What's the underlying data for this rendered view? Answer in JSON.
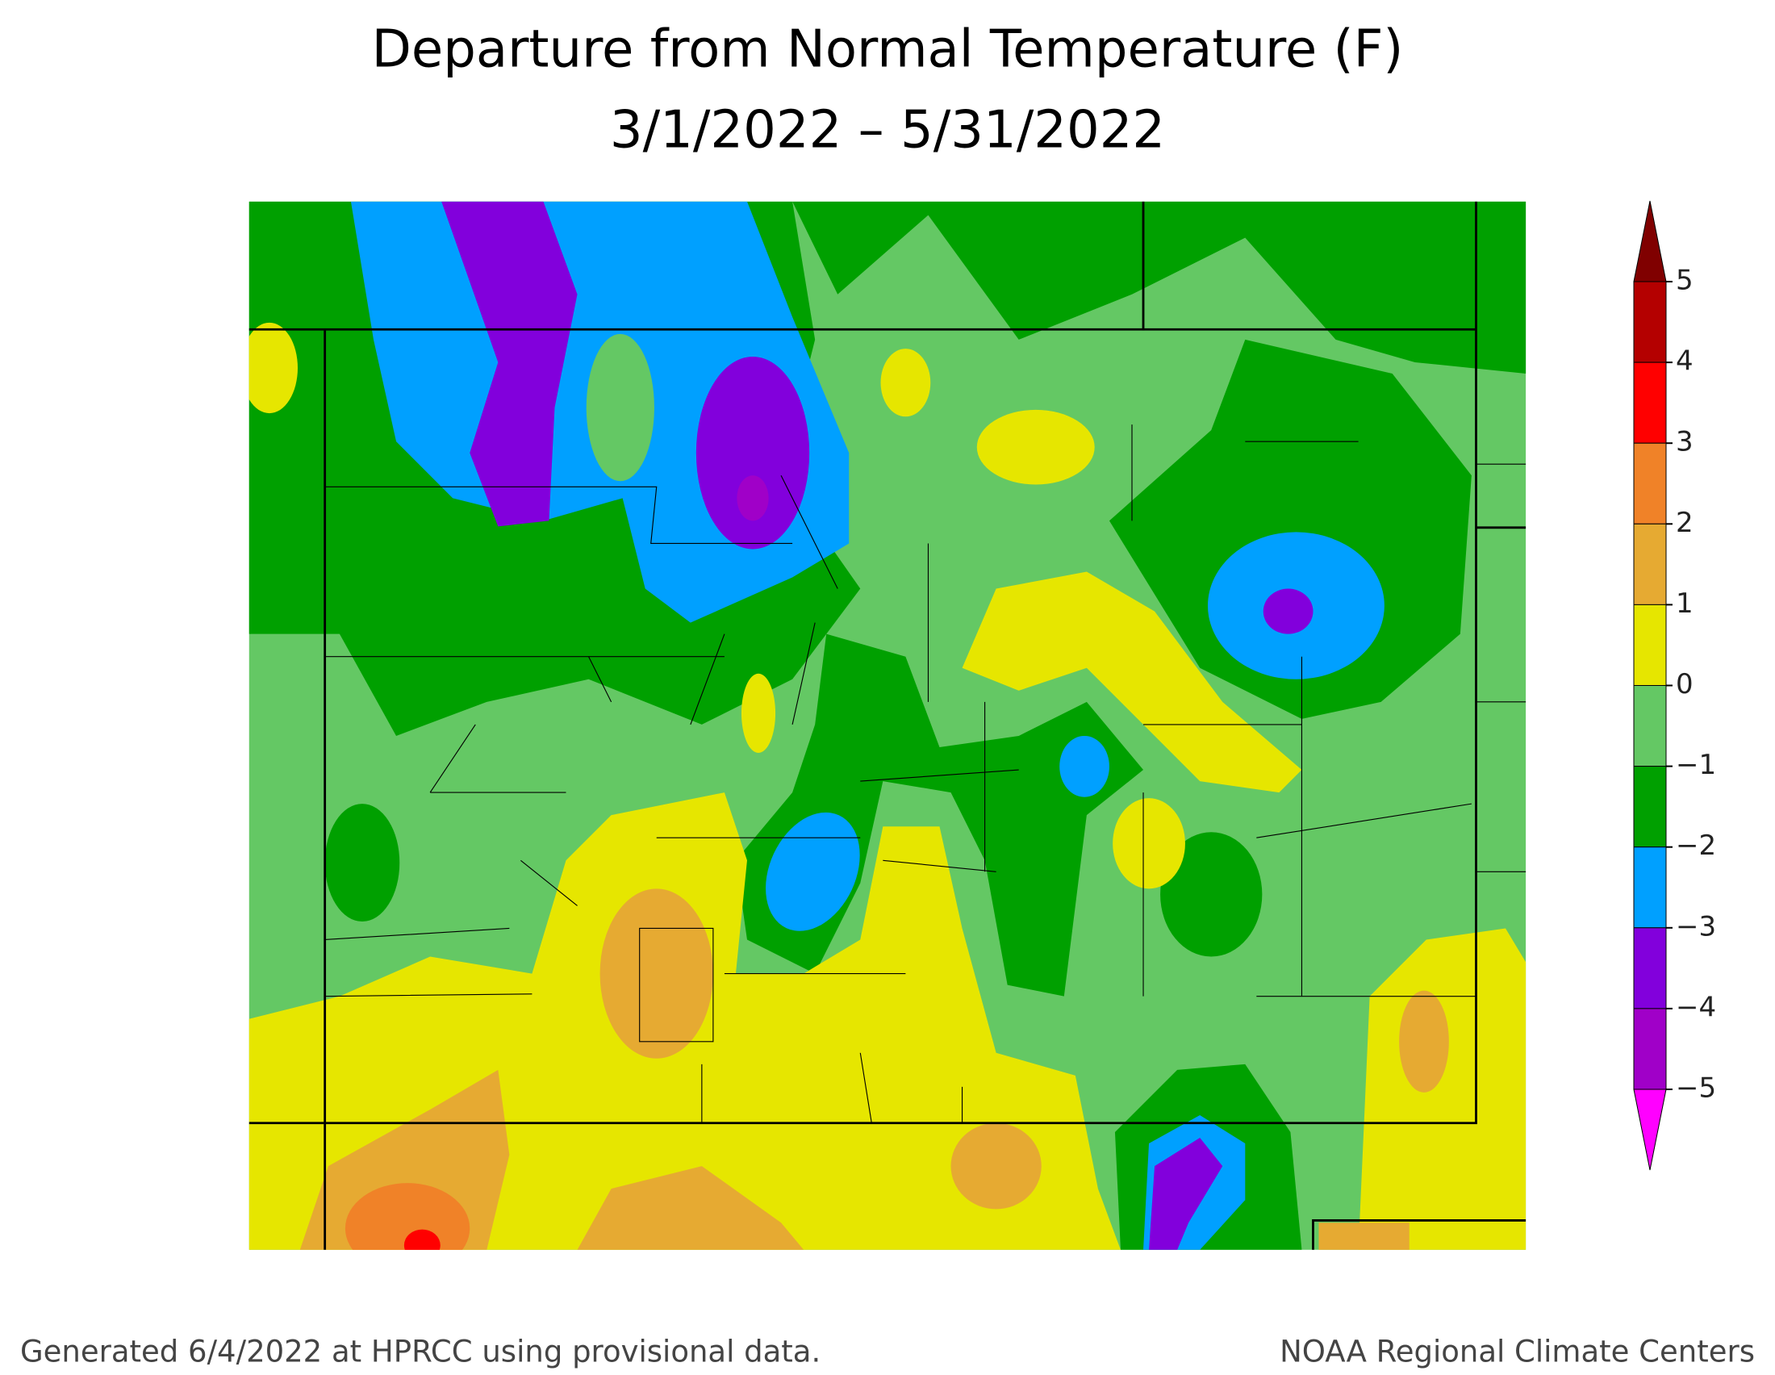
{
  "title": "Departure from Normal Temperature (F)",
  "subtitle": "3/1/2022 – 5/31/2022",
  "legend": {
    "ticks": [
      5,
      4,
      3,
      2,
      1,
      0,
      {
        "value": -1,
        "label": "−1"
      },
      {
        "value": -2,
        "label": "−2"
      },
      {
        "value": -3,
        "label": "−3"
      },
      {
        "value": -4,
        "label": "−4"
      },
      {
        "value": -5,
        "label": "−5"
      }
    ],
    "over_color": "#800000",
    "colors": [
      "#b40000",
      "#ff0000",
      "#f08228",
      "#e6aa32",
      "#e6e600",
      "#64c864",
      "#00a000",
      "#00a0ff",
      "#8200dc",
      "#a000c8"
    ],
    "under_color": "#ff00ff"
  },
  "footer_left": "Generated 6/4/2022 at HPRCC using provisional data.",
  "footer_right": "NOAA Regional Climate Centers"
}
